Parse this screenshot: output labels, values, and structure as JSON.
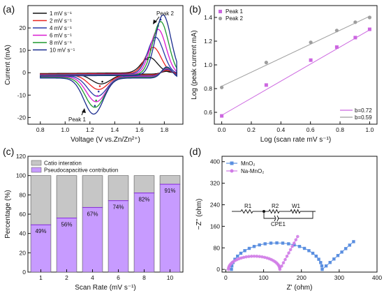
{
  "panels": {
    "a": "(a)",
    "b": "(b)",
    "c": "(c)",
    "d": "(d)"
  },
  "chart_data": [
    {
      "panel": "a",
      "type": "line",
      "xlabel": "Voltage (V vs.Zn/Zn²⁺)",
      "ylabel": "Current (mA)",
      "xlim": [
        0.7,
        1.95
      ],
      "ylim": [
        -23,
        30
      ],
      "xticks": [
        "0.8",
        "1.0",
        "1.2",
        "1.4",
        "1.6",
        "1.8"
      ],
      "yticks": [
        "-20",
        "-10",
        "0",
        "10",
        "20"
      ],
      "legend_placement": "top-left",
      "annotations": [
        "Peak 2",
        "Peak 1"
      ],
      "peak_anodic_V": [
        1.68,
        1.71,
        1.73,
        1.75,
        1.77,
        1.79
      ],
      "peak_anodic_mA": [
        6.5,
        11.0,
        15.5,
        19.0,
        22.5,
        25.5
      ],
      "peak_cathodic_V": [
        1.29,
        1.27,
        1.26,
        1.25,
        1.24,
        1.23
      ],
      "peak_cathodic_mA": [
        -5.0,
        -7.5,
        -10.5,
        -13.0,
        -15.5,
        -18.5
      ],
      "series": [
        {
          "name": "1 mV s⁻¹",
          "color": "#111111",
          "scale": 0.25
        },
        {
          "name": "2 mV s⁻¹",
          "color": "#e8231f",
          "scale": 0.42
        },
        {
          "name": "4 mV s⁻¹",
          "color": "#2a3aa8",
          "scale": 0.6
        },
        {
          "name": "6 mV s⁻¹",
          "color": "#d91ad1",
          "scale": 0.74
        },
        {
          "name": "8 mV s⁻¹",
          "color": "#1e9a2e",
          "scale": 0.87
        },
        {
          "name": "10 mV s⁻¹",
          "color": "#1a2c8f",
          "scale": 1.0
        }
      ]
    },
    {
      "panel": "b",
      "type": "scatter",
      "xlabel": "Log (scan rate mV s⁻¹)",
      "ylabel": "Log (peak current mA)",
      "xlim": [
        -0.05,
        1.05
      ],
      "ylim": [
        0.5,
        1.5
      ],
      "xticks": [
        "0.0",
        "0.2",
        "0.4",
        "0.6",
        "0.8",
        "1.0"
      ],
      "yticks": [
        "0.6",
        "0.8",
        "1.0",
        "1.2",
        "1.4"
      ],
      "legend_placement": "top-left",
      "fit_labels": [
        "b=0.72",
        "b=0.59"
      ],
      "x": [
        0.0,
        0.301,
        0.602,
        0.778,
        0.903,
        1.0
      ],
      "series": [
        {
          "name": "Peak 1",
          "color": "#cc66e0",
          "marker": "square",
          "values": [
            0.57,
            0.83,
            1.04,
            1.15,
            1.23,
            1.3
          ],
          "fit": [
            0.575,
            1.295
          ]
        },
        {
          "name": "Peak 2",
          "color": "#9e9e9e",
          "marker": "circle",
          "values": [
            0.81,
            1.02,
            1.19,
            1.29,
            1.36,
            1.4
          ],
          "fit": [
            0.82,
            1.41
          ]
        }
      ]
    },
    {
      "panel": "c",
      "type": "bar",
      "xlabel": "Scan Rate (mV s⁻¹)",
      "ylabel": "Percentage (%)",
      "ylim": [
        0,
        120
      ],
      "yticks": [
        "0",
        "20",
        "40",
        "60",
        "80",
        "100",
        "120"
      ],
      "categories": [
        "1",
        "2",
        "4",
        "6",
        "8",
        "10"
      ],
      "legend_placement": "top-left",
      "series": [
        {
          "name": "Catio interation",
          "color": "#c6c6c6",
          "values": [
            51,
            44,
            33,
            26,
            18,
            9
          ]
        },
        {
          "name": "Pseudocapacitive contribution",
          "color": "#c79bff",
          "values": [
            49,
            56,
            67,
            74,
            82,
            91
          ]
        }
      ],
      "data_labels": [
        "49%",
        "56%",
        "67%",
        "74%",
        "82%",
        "91%"
      ]
    },
    {
      "panel": "d",
      "type": "scatter",
      "xlabel": "Z' (ohm)",
      "ylabel": "−Z'' (ohm)",
      "xlim": [
        -10,
        400
      ],
      "ylim": [
        -10,
        420
      ],
      "xticks": [
        "0",
        "100",
        "200",
        "300",
        "400"
      ],
      "yticks": [
        "0",
        "80",
        "160",
        "240",
        "320",
        "400"
      ],
      "legend_placement": "top-left",
      "circuit_labels": [
        "R1",
        "R2",
        "W1",
        "CPE1"
      ],
      "series": [
        {
          "name": "MnO₂",
          "color": "#5b8fe0",
          "marker": "square",
          "center": 135,
          "radius": 120,
          "tail_end": [
            338,
            103
          ]
        },
        {
          "name": "Na-MnO₂",
          "color": "#d07be6",
          "marker": "circle",
          "center": 75,
          "radius": 68,
          "tail_end": [
            190,
            122
          ]
        }
      ]
    }
  ]
}
